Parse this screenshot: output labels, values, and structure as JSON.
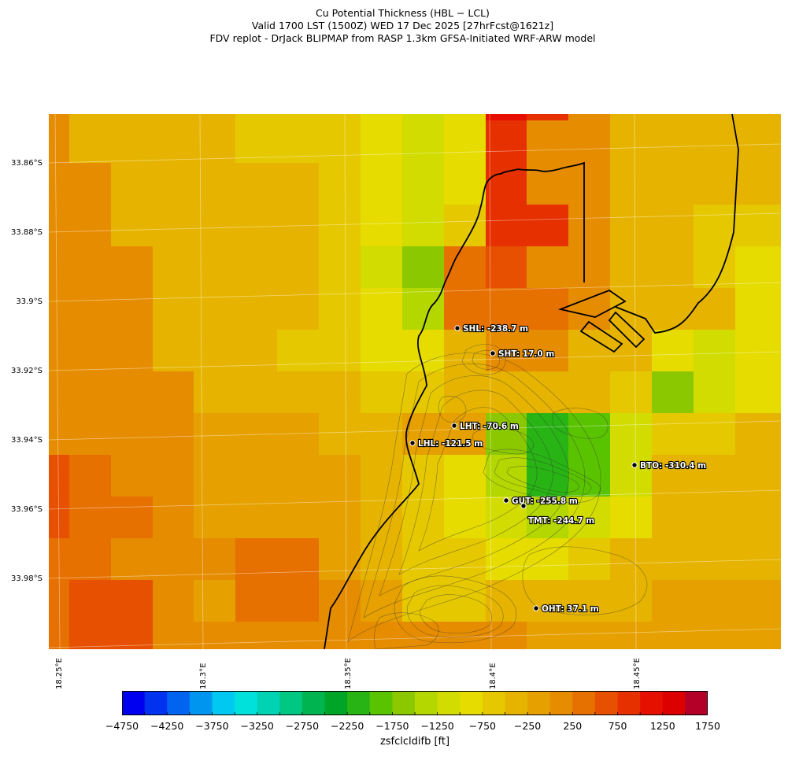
{
  "titles": {
    "line1": "Cu Potential Thickness (HBL − LCL)",
    "line2": "Valid 1700 LST (1500Z) WED 17 Dec 2025 [27hrFcst@1621z]",
    "line3": "FDV replot - DrJack BLIPMAP from RASP 1.3km GFSA-Initiated WRF-ARW model"
  },
  "map": {
    "lat_labels": [
      "33.86°S",
      "33.88°S",
      "33.9°S",
      "33.92°S",
      "33.94°S",
      "33.96°S",
      "33.98°S"
    ],
    "lon_labels": [
      "18.25°E",
      "18.3°E",
      "18.35°E",
      "18.4°E",
      "18.45°E"
    ],
    "stations": [
      {
        "code": "SHL",
        "label": "SHL: -238.7 m"
      },
      {
        "code": "SHT",
        "label": "SHT: 17.0 m"
      },
      {
        "code": "LHT",
        "label": "LHT: -70.6 m"
      },
      {
        "code": "LHL",
        "label": "LHL: -121.5 m"
      },
      {
        "code": "BTO",
        "label": "BTO: -310.4 m"
      },
      {
        "code": "GUT",
        "label": "GUT: -255.8 m"
      },
      {
        "code": "TMT",
        "label": "TMT: -244.7 m"
      },
      {
        "code": "OHT",
        "label": "OHT: 37.1 m"
      }
    ]
  },
  "colorbar": {
    "label": "zsfclcldifb [ft]",
    "tick_labels": [
      "−4750",
      "−4250",
      "−3750",
      "−3250",
      "−2750",
      "−2250",
      "−1750",
      "−1250",
      "−750",
      "−250",
      "250",
      "750",
      "1250",
      "1750"
    ],
    "min": -4750,
    "max": 1750,
    "step": 250,
    "colors": [
      "#0000f0",
      "#0032f0",
      "#0064f0",
      "#0096f0",
      "#00c8f0",
      "#00e1dc",
      "#00d2b4",
      "#00c882",
      "#00b450",
      "#00a528",
      "#28b414",
      "#5ac300",
      "#8cc800",
      "#b4d700",
      "#d2dc00",
      "#e6dc00",
      "#e6c800",
      "#e6b400",
      "#e6a000",
      "#e68c00",
      "#e67000",
      "#e65000",
      "#e63000",
      "#e61000",
      "#dc0000",
      "#b40028"
    ]
  }
}
